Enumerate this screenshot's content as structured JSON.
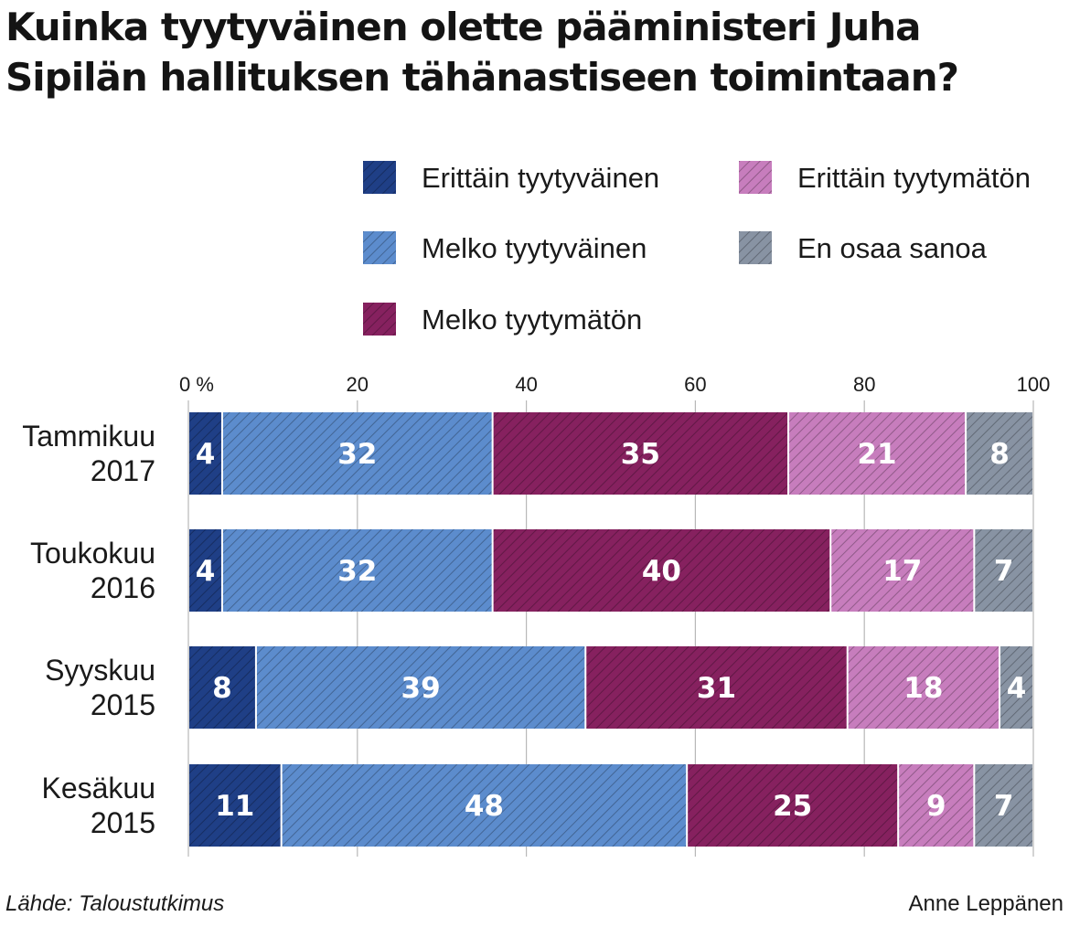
{
  "title_lines": [
    "Kuinka tyytyväinen olette pääministeri Juha",
    "Sipilän hallituksen tähänastiseen toimintaan?"
  ],
  "legend": [
    {
      "label": "Erittäin tyytyväinen",
      "color": "#1f3f86"
    },
    {
      "label": "Erittäin tyytymätön",
      "color": "#c77dbd"
    },
    {
      "label": "Melko tyytyväinen",
      "color": "#5c8ccd"
    },
    {
      "label": "En osaa sanoa",
      "color": "#8893a3"
    },
    {
      "label": "Melko tyytymätön",
      "color": "#86215f"
    }
  ],
  "source": "Lähde: Taloustutkimus",
  "author": "Anne Leppänen",
  "chart_data": {
    "type": "bar",
    "orientation": "horizontal",
    "stacked": true,
    "xlim": [
      0,
      100
    ],
    "x_ticks": [
      "0 %",
      "20",
      "40",
      "60",
      "80",
      "100"
    ],
    "x_tick_values": [
      0,
      20,
      40,
      60,
      80,
      100
    ],
    "categories": [
      [
        "Tammikuu",
        "2017"
      ],
      [
        "Toukokuu",
        "2016"
      ],
      [
        "Syyskuu",
        "2015"
      ],
      [
        "Kesäkuu",
        "2015"
      ]
    ],
    "series": [
      {
        "name": "Erittäin tyytyväinen",
        "color": "#1f3f86",
        "values": [
          4,
          4,
          8,
          11
        ]
      },
      {
        "name": "Melko tyytyväinen",
        "color": "#5c8ccd",
        "values": [
          32,
          32,
          39,
          48
        ]
      },
      {
        "name": "Melko tyytymätön",
        "color": "#86215f",
        "values": [
          35,
          40,
          31,
          25
        ]
      },
      {
        "name": "Erittäin tyytymätön",
        "color": "#c77dbd",
        "values": [
          21,
          17,
          18,
          9
        ]
      },
      {
        "name": "En osaa sanoa",
        "color": "#8893a3",
        "values": [
          8,
          7,
          4,
          7
        ]
      }
    ],
    "grid": true,
    "legend_position": "top-right"
  }
}
